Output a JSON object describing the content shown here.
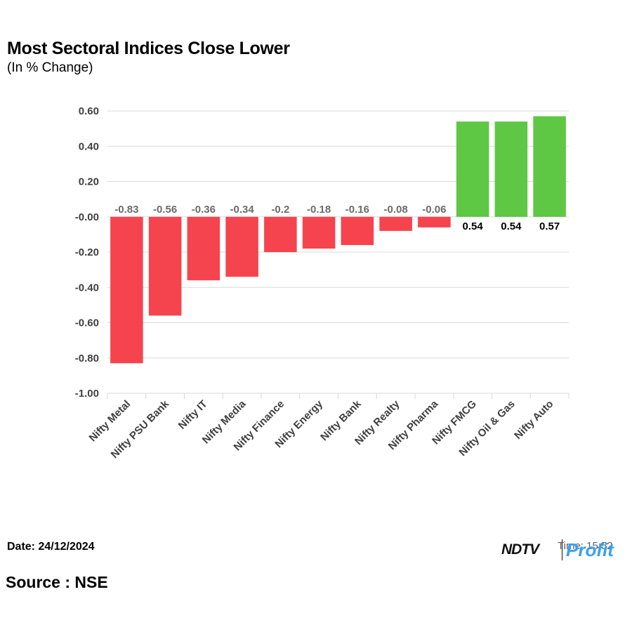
{
  "chart_data": {
    "type": "bar",
    "title": "Most Sectoral Indices Close Lower",
    "subtitle": "(In % Change)",
    "categories": [
      "Nifty Metal",
      "Nifty PSU Bank",
      "Nifty IT",
      "Nifty Media",
      "Nifty Finance",
      "Nifty Energy",
      "Nifty Bank",
      "Nifty Realty",
      "Nifty Pharma",
      "Nifty FMCG",
      "Nifty Oil & Gas",
      "Nifty Auto"
    ],
    "values": [
      -0.83,
      -0.56,
      -0.36,
      -0.34,
      -0.2,
      -0.18,
      -0.16,
      -0.08,
      -0.06,
      0.54,
      0.54,
      0.57
    ],
    "value_labels": [
      "-0.83",
      "-0.56",
      "-0.36",
      "-0.34",
      "-0.2",
      "-0.18",
      "-0.16",
      "-0.08",
      "-0.06",
      "0.54",
      "0.54",
      "0.57"
    ],
    "y_ticks": [
      0.6,
      0.4,
      0.2,
      0.0,
      -0.2,
      -0.4,
      -0.6,
      -0.8,
      -1.0
    ],
    "y_tick_labels": [
      "0.60",
      "0.40",
      "0.20",
      "-0.00",
      "-0.20",
      "-0.40",
      "-0.60",
      "-0.80",
      "-1.00"
    ],
    "ylim": [
      -1.0,
      0.6
    ],
    "xlabel": "",
    "ylabel": "",
    "grid": true,
    "colors": {
      "negative": "#f5444e",
      "positive": "#5ec744",
      "grid": "#d9d9d9",
      "axis_text": "#404040",
      "negative_label": "#6b6b6b",
      "positive_label": "#000000"
    }
  },
  "footer": {
    "date": "Date: 24/12/2024",
    "source": "Source : NSE"
  },
  "logo": {
    "ndtv": "NDTV",
    "profit": "Profit",
    "time": "Time: 15:52",
    "profit_color": "#3ba0f0"
  }
}
